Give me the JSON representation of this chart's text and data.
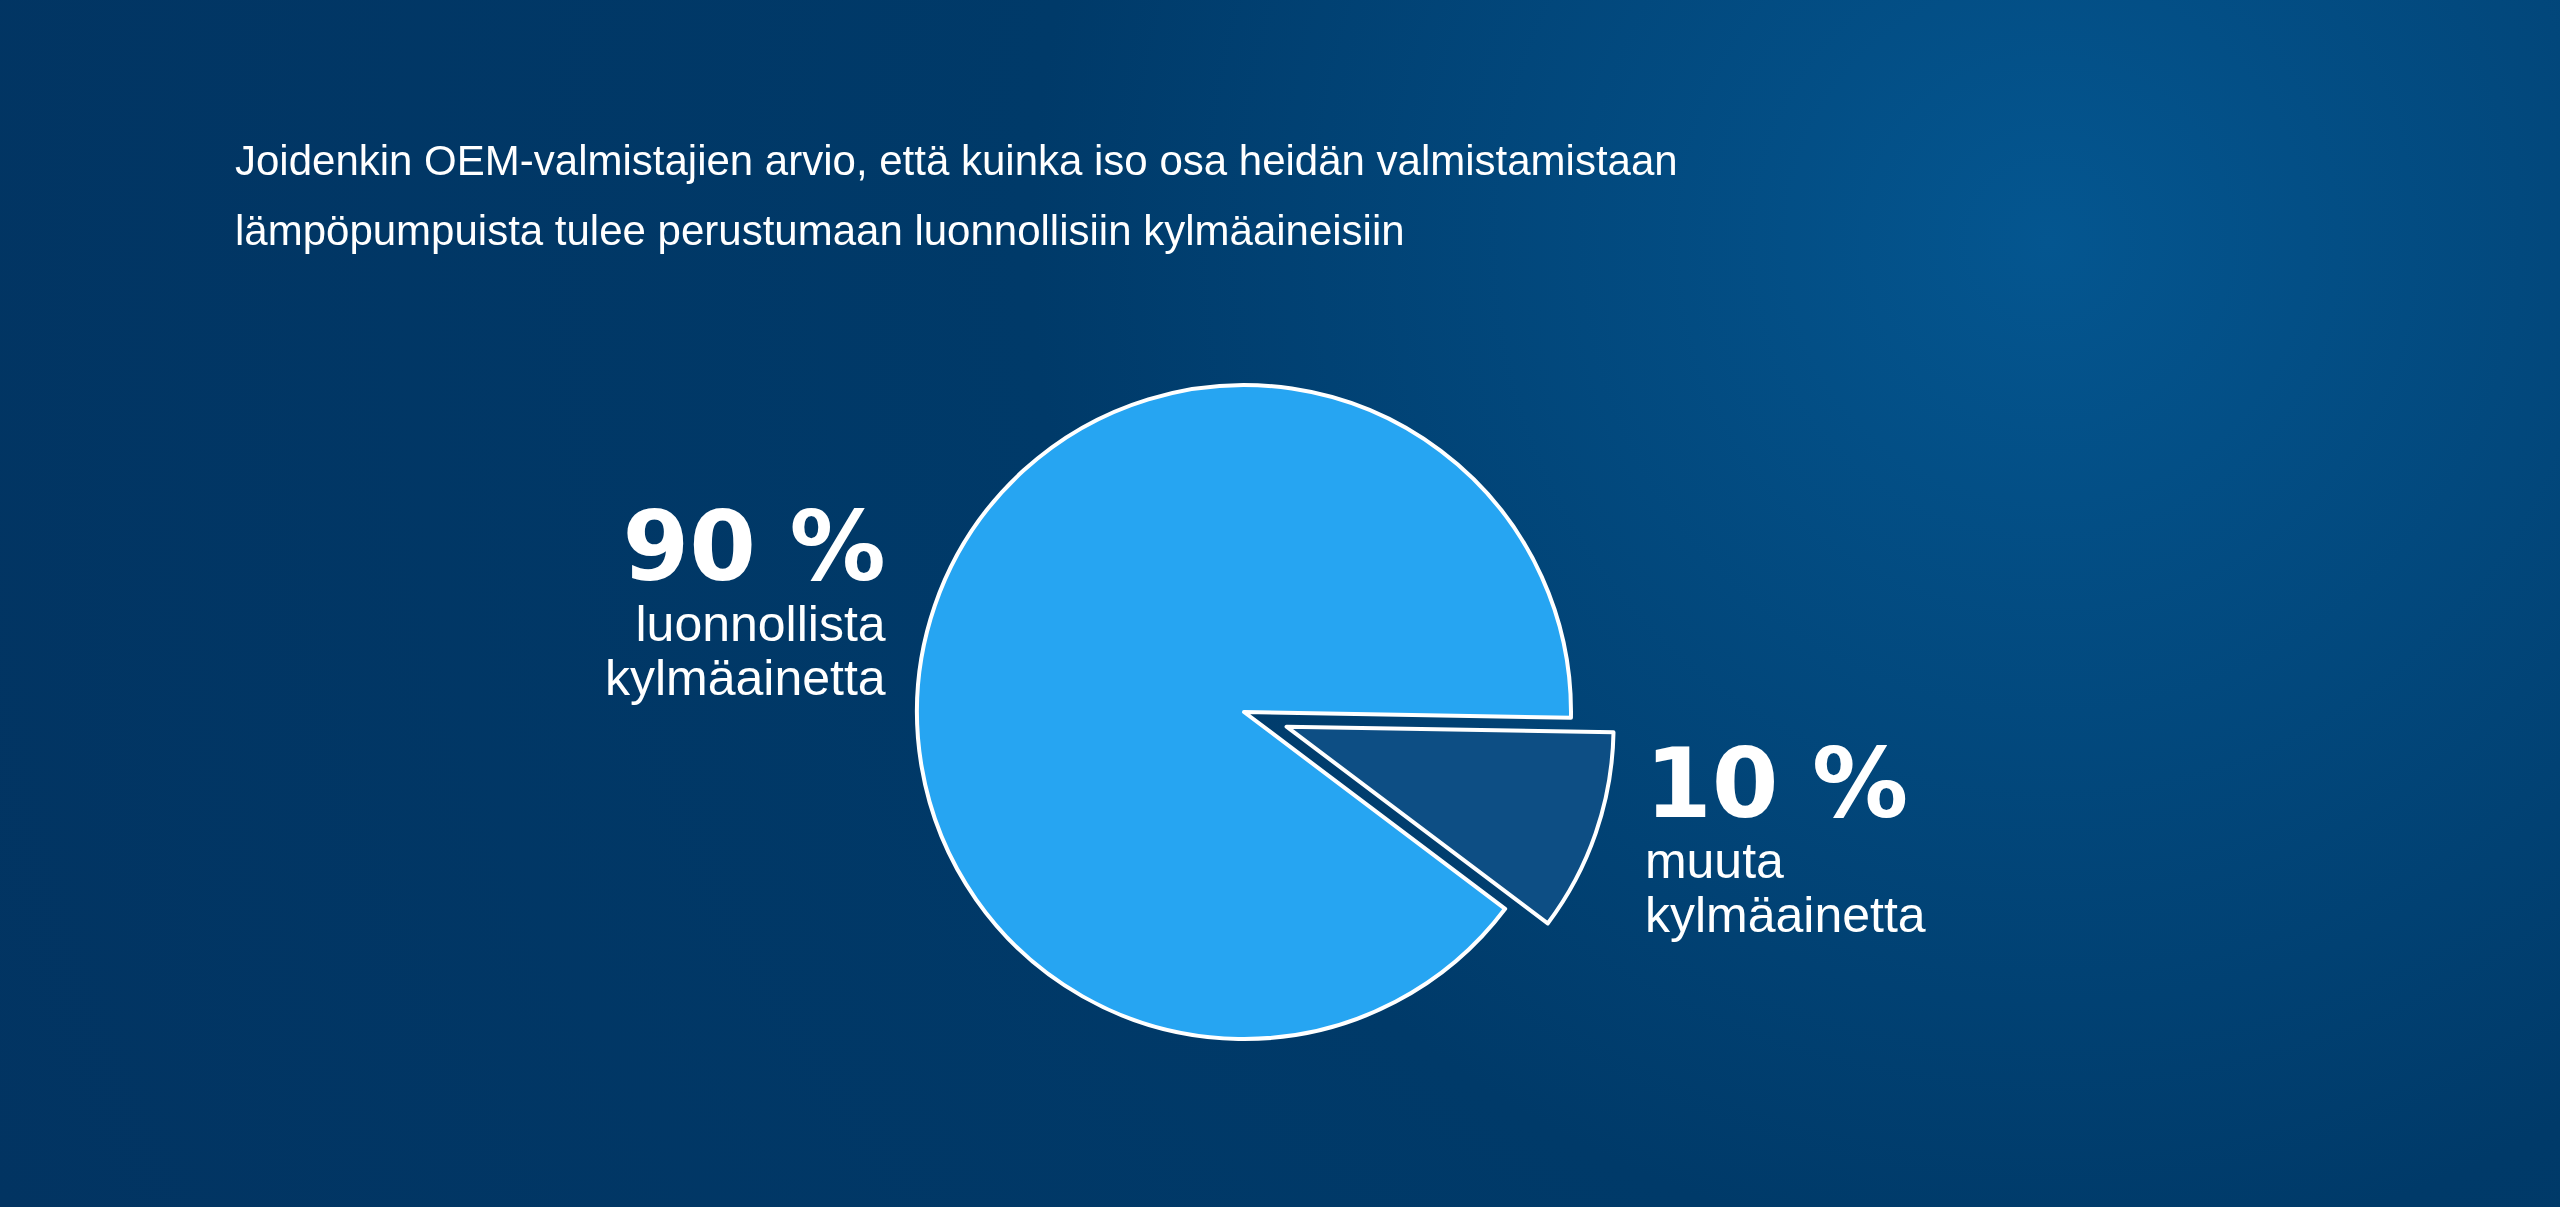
{
  "chart_data": {
    "type": "pie",
    "title": "Joidenkin OEM-valmistajien arvio, että kuinka iso osa heidän valmistamistaan lämpöpumpuista tulee perustumaan luonnollisiin kylmäaineisiin",
    "categories": [
      "luonnollista kylmäainetta",
      "muuta kylmäainetta"
    ],
    "values": [
      90,
      10
    ],
    "value_labels": [
      "90 %",
      "10 %"
    ],
    "colors": [
      "#26a5f2",
      "#0d4e84"
    ],
    "legend": false
  }
}
